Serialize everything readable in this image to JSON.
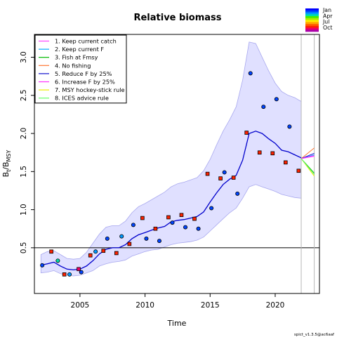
{
  "chart_data": {
    "type": "line",
    "title": "Relative biomass",
    "xlabel": "Time",
    "ylabel": "B",
    "ylabel_sub1": "t",
    "ylabel_mid": "/B",
    "ylabel_sub2": "MSY",
    "xlim": [
      2001.5,
      2023.4
    ],
    "ylim": [
      -0.1,
      3.3
    ],
    "x_ticks": [
      2005,
      2010,
      2015,
      2020
    ],
    "y_ticks": [
      0.5,
      1.0,
      1.5,
      2.0,
      2.5,
      3.0
    ],
    "x_tick_labels": [
      "2005",
      "2010",
      "2015",
      "2020"
    ],
    "y_tick_labels": [
      "0.5",
      "1.0",
      "1.5",
      "2.0",
      "2.5",
      "3.0"
    ],
    "reference_line_y": 0.5,
    "vertical_lines_x": [
      2022.0,
      2023.0
    ],
    "estimate": {
      "color": "#0000cc",
      "x": [
        2002.0,
        2002.5,
        2003.0,
        2003.5,
        2004.0,
        2004.5,
        2005.0,
        2005.5,
        2006.0,
        2006.5,
        2007.0,
        2007.5,
        2008.0,
        2008.5,
        2009.0,
        2009.5,
        2010.0,
        2010.5,
        2011.0,
        2011.5,
        2012.0,
        2012.5,
        2013.0,
        2013.5,
        2014.0,
        2014.5,
        2015.0,
        2015.5,
        2016.0,
        2016.5,
        2017.0,
        2017.5,
        2018.0,
        2018.5,
        2019.0,
        2019.5,
        2020.0,
        2020.5,
        2021.0,
        2021.5,
        2022.0
      ],
      "y": [
        0.27,
        0.29,
        0.31,
        0.26,
        0.22,
        0.21,
        0.22,
        0.26,
        0.33,
        0.42,
        0.48,
        0.5,
        0.5,
        0.54,
        0.62,
        0.67,
        0.7,
        0.73,
        0.76,
        0.78,
        0.84,
        0.86,
        0.87,
        0.89,
        0.91,
        0.97,
        1.1,
        1.22,
        1.33,
        1.4,
        1.45,
        1.65,
        2.0,
        2.03,
        2.0,
        1.93,
        1.87,
        1.78,
        1.76,
        1.72,
        1.68
      ]
    },
    "confidence_band": {
      "fill": "#e0e0ff",
      "edge": "#a8a8ee",
      "upper": [
        0.41,
        0.45,
        0.46,
        0.41,
        0.36,
        0.35,
        0.36,
        0.44,
        0.56,
        0.68,
        0.77,
        0.79,
        0.79,
        0.85,
        0.96,
        1.04,
        1.08,
        1.13,
        1.18,
        1.23,
        1.3,
        1.34,
        1.36,
        1.39,
        1.42,
        1.51,
        1.66,
        1.85,
        2.03,
        2.18,
        2.35,
        2.7,
        3.2,
        3.18,
        3.0,
        2.82,
        2.66,
        2.55,
        2.5,
        2.47,
        2.42
      ],
      "lower": [
        0.17,
        0.18,
        0.2,
        0.16,
        0.14,
        0.13,
        0.14,
        0.17,
        0.2,
        0.26,
        0.29,
        0.31,
        0.32,
        0.34,
        0.39,
        0.42,
        0.45,
        0.47,
        0.48,
        0.51,
        0.54,
        0.56,
        0.57,
        0.58,
        0.6,
        0.64,
        0.72,
        0.8,
        0.88,
        0.96,
        1.02,
        1.15,
        1.3,
        1.33,
        1.3,
        1.27,
        1.24,
        1.2,
        1.18,
        1.16,
        1.15
      ]
    },
    "observations": {
      "survey_circles": {
        "marker": "circle",
        "points": [
          [
            2002.1,
            0.27
          ],
          [
            2003.3,
            0.33
          ],
          [
            2004.2,
            0.15
          ],
          [
            2005.1,
            0.18
          ],
          [
            2006.2,
            0.45
          ],
          [
            2007.1,
            0.62
          ],
          [
            2008.2,
            0.65
          ],
          [
            2009.1,
            0.8
          ],
          [
            2010.1,
            0.62
          ],
          [
            2011.1,
            0.59
          ],
          [
            2012.1,
            0.83
          ],
          [
            2013.1,
            0.77
          ],
          [
            2014.1,
            0.75
          ],
          [
            2015.1,
            1.02
          ],
          [
            2016.1,
            1.49
          ],
          [
            2017.1,
            1.21
          ],
          [
            2018.1,
            2.79
          ],
          [
            2019.1,
            2.35
          ],
          [
            2020.1,
            2.45
          ],
          [
            2021.1,
            2.09
          ]
        ]
      },
      "survey_squares": {
        "marker": "square",
        "points": [
          [
            2002.8,
            0.45
          ],
          [
            2003.8,
            0.15
          ],
          [
            2004.9,
            0.22
          ],
          [
            2005.8,
            0.4
          ],
          [
            2006.8,
            0.46
          ],
          [
            2007.8,
            0.43
          ],
          [
            2008.8,
            0.55
          ],
          [
            2009.8,
            0.89
          ],
          [
            2010.8,
            0.75
          ],
          [
            2011.8,
            0.9
          ],
          [
            2012.8,
            0.93
          ],
          [
            2013.8,
            0.88
          ],
          [
            2014.8,
            1.47
          ],
          [
            2015.8,
            1.41
          ],
          [
            2016.8,
            1.42
          ],
          [
            2017.8,
            2.01
          ],
          [
            2018.8,
            1.75
          ],
          [
            2019.8,
            1.74
          ],
          [
            2020.8,
            1.62
          ],
          [
            2021.8,
            1.51
          ]
        ]
      }
    },
    "scenarios": [
      {
        "name": "1. Keep current catch",
        "color": "#ff44ff",
        "end": 1.7
      },
      {
        "name": "2. Keep current F",
        "color": "#00aaff",
        "end": 1.72
      },
      {
        "name": "3. Fish at Fmsy",
        "color": "#00bb00",
        "end": 1.48
      },
      {
        "name": "4. No fishing",
        "color": "#ff7733",
        "end": 1.81
      },
      {
        "name": "5. Reduce F by 25%",
        "color": "#1111cc",
        "end": 1.74
      },
      {
        "name": "6. Increase F by 25%",
        "color": "#ff33ff",
        "end": 1.71
      },
      {
        "name": "7. MSY hockey-stick rule",
        "color": "#eeee00",
        "end": 1.44
      },
      {
        "name": "8. ICES advice rule",
        "color": "#66ff66",
        "end": 1.46
      }
    ],
    "scenario_start": {
      "x": 2022.0,
      "y": 1.67
    },
    "scenario_end_x": 2023.0,
    "season_legend": {
      "labels": [
        "Jan",
        "Apr",
        "Jul",
        "Oct"
      ],
      "colors": [
        "#0000ff",
        "#0044ff",
        "#0099ff",
        "#00ddaa",
        "#44ee00",
        "#aaee00",
        "#ffee00",
        "#ffaa00",
        "#ff6600",
        "#ff2200",
        "#ee0066",
        "#aa00aa"
      ]
    },
    "footnote": "spict_v1.3.5@ac6aaf"
  }
}
